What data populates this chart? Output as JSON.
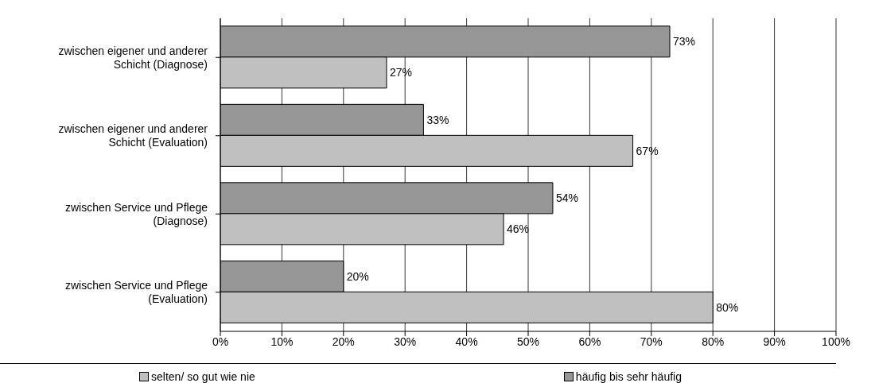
{
  "chart_data": {
    "type": "bar",
    "orientation": "horizontal",
    "categories": [
      "zwischen eigener und anderer Schicht (Diagnose)",
      "zwischen eigener und anderer Schicht (Evaluation)",
      "zwischen Service und Pflege (Diagnose)",
      "zwischen Service und Pflege (Evaluation)"
    ],
    "series": [
      {
        "name": "häufig bis sehr häufig",
        "color": "#969696",
        "values": [
          73,
          33,
          54,
          20
        ],
        "value_labels": [
          "73%",
          "33%",
          "54%",
          "20%"
        ]
      },
      {
        "name": "selten/ so gut wie nie",
        "color": "#c0c0c0",
        "values": [
          27,
          67,
          46,
          80
        ],
        "value_labels": [
          "27%",
          "67%",
          "46%",
          "80%"
        ]
      }
    ],
    "xlim": [
      0,
      100
    ],
    "xticks": [
      {
        "value": 0,
        "label": "0%"
      },
      {
        "value": 10,
        "label": "10%"
      },
      {
        "value": 20,
        "label": "20%"
      },
      {
        "value": 30,
        "label": "30%"
      },
      {
        "value": 40,
        "label": "40%"
      },
      {
        "value": 50,
        "label": "50%"
      },
      {
        "value": 60,
        "label": "60%"
      },
      {
        "value": 70,
        "label": "70%"
      },
      {
        "value": 80,
        "label": "80%"
      },
      {
        "value": 90,
        "label": "90%"
      },
      {
        "value": 100,
        "label": "100%"
      }
    ],
    "grid": "x",
    "legend": "bottom"
  }
}
